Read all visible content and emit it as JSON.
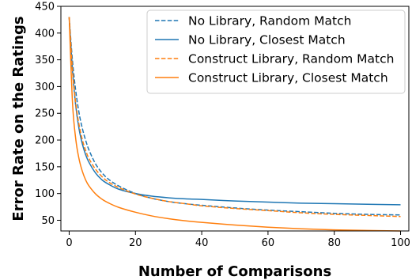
{
  "chart_data": {
    "type": "line",
    "xlabel": "Number of Comparisons",
    "ylabel": "Error Rate on the Ratings",
    "xlim": [
      -2.5,
      102.5
    ],
    "ylim": [
      30,
      450
    ],
    "xticks": [
      0,
      20,
      40,
      60,
      80,
      100
    ],
    "yticks": [
      50,
      100,
      150,
      200,
      250,
      300,
      350,
      400,
      450
    ],
    "grid": false,
    "legend_position": "top-right",
    "series": [
      {
        "name": "No Library, Random Match",
        "color": "#1f77b4",
        "style": "dashed",
        "x": [
          0,
          1,
          2,
          3,
          4,
          5,
          6,
          8,
          10,
          12,
          15,
          20,
          25,
          30,
          35,
          40,
          50,
          60,
          70,
          80,
          90,
          100
        ],
        "y": [
          430,
          348,
          291,
          250,
          221,
          199,
          181,
          155,
          138,
          126,
          114,
          100,
          91,
          85,
          81,
          78,
          73,
          69,
          66,
          63,
          61,
          60
        ]
      },
      {
        "name": "No Library, Closest Match",
        "color": "#1f77b4",
        "style": "solid",
        "x": [
          0,
          1,
          2,
          3,
          4,
          5,
          6,
          8,
          10,
          12,
          15,
          20,
          25,
          30,
          35,
          40,
          50,
          60,
          70,
          80,
          90,
          100
        ],
        "y": [
          430,
          330,
          263,
          220,
          192,
          172,
          158,
          138,
          125,
          117,
          108,
          100,
          95,
          92,
          90,
          89,
          86,
          84,
          82,
          81,
          80,
          79
        ]
      },
      {
        "name": "Construct Library, Random Match",
        "color": "#ff7f0e",
        "style": "dashed",
        "x": [
          0,
          1,
          2,
          3,
          4,
          5,
          6,
          8,
          10,
          12,
          15,
          20,
          25,
          30,
          35,
          40,
          50,
          60,
          70,
          80,
          90,
          100
        ],
        "y": [
          430,
          330,
          268,
          228,
          200,
          180,
          165,
          145,
          131,
          121,
          111,
          99,
          91,
          85,
          81,
          77,
          72,
          68,
          64,
          61,
          59,
          57
        ]
      },
      {
        "name": "Construct Library, Closest Match",
        "color": "#ff7f0e",
        "style": "solid",
        "x": [
          0,
          1,
          2,
          3,
          4,
          5,
          6,
          8,
          10,
          12,
          15,
          20,
          25,
          30,
          35,
          40,
          50,
          60,
          70,
          80,
          90,
          100
        ],
        "y": [
          430,
          270,
          201,
          164,
          141,
          125,
          114,
          99,
          89,
          82,
          74,
          65,
          58,
          53,
          49,
          46,
          41,
          37,
          34,
          32,
          31,
          30
        ]
      }
    ]
  }
}
